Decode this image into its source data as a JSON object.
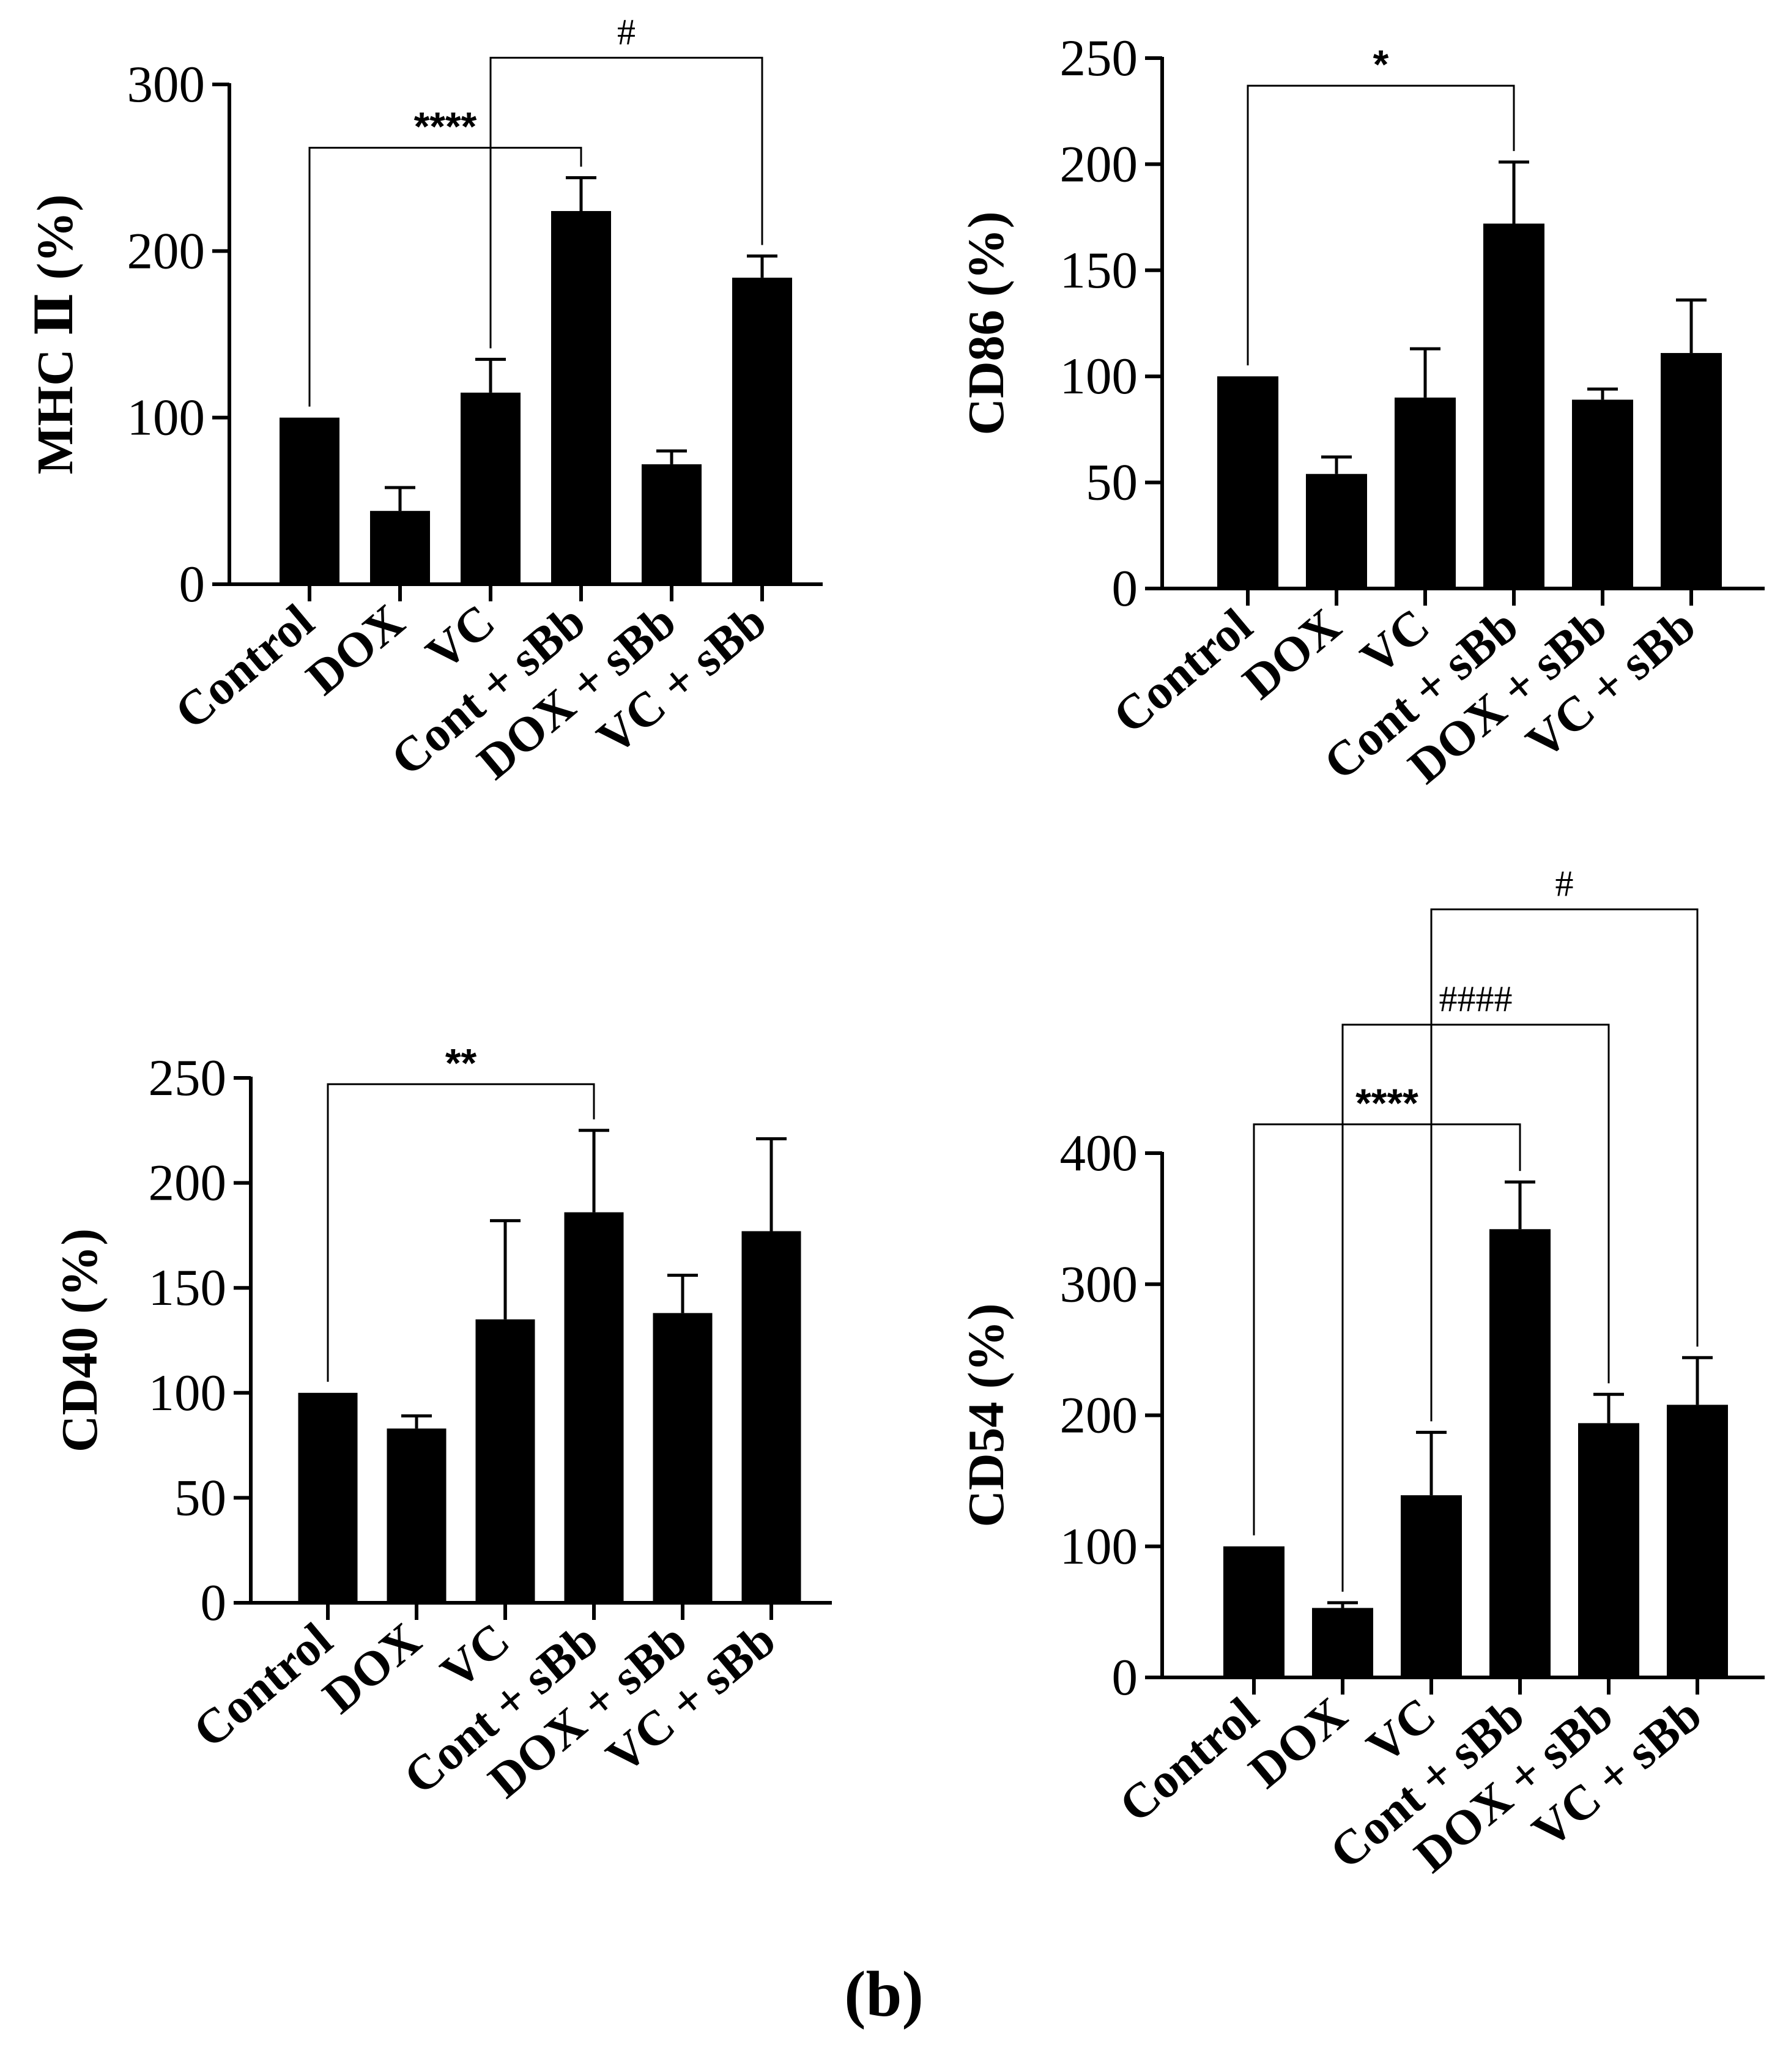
{
  "panel_label": "(b)",
  "chart_data": [
    {
      "type": "bar",
      "ylabel": "MHC Ⅱ (%)",
      "categories": [
        "Control",
        "DOX",
        "VC",
        "Cont + sBb",
        "DOX + sBb",
        "VC + sBb"
      ],
      "values": [
        100,
        44,
        115,
        224,
        72,
        184
      ],
      "errors": [
        0,
        14,
        20,
        20,
        8,
        13
      ],
      "ylim": [
        0,
        300
      ],
      "yticks": [
        0,
        100,
        200,
        300
      ],
      "significance": [
        {
          "from": 0,
          "to": 3,
          "label": "****",
          "y": 262
        },
        {
          "from": 2,
          "to": 5,
          "label": "#",
          "y": 316
        }
      ]
    },
    {
      "type": "bar",
      "ylabel": "CD86 (%)",
      "categories": [
        "Control",
        "DOX",
        "VC",
        "Cont + sBb",
        "DOX + sBb",
        "VC + sBb"
      ],
      "values": [
        100,
        54,
        90,
        172,
        89,
        111
      ],
      "errors": [
        0,
        8,
        23,
        29,
        5,
        25
      ],
      "ylim": [
        0,
        250
      ],
      "yticks": [
        0,
        50,
        100,
        150,
        200,
        250
      ],
      "significance": [
        {
          "from": 0,
          "to": 3,
          "label": "*",
          "y": 237
        }
      ]
    },
    {
      "type": "bar",
      "ylabel": "CD40 (%)",
      "categories": [
        "Control",
        "DOX",
        "VC",
        "Cont + sBb",
        "DOX + sBb",
        "VC + sBb"
      ],
      "values": [
        100,
        83,
        135,
        186,
        138,
        177
      ],
      "errors": [
        0,
        6,
        47,
        39,
        18,
        44
      ],
      "ylim": [
        0,
        250
      ],
      "yticks": [
        0,
        50,
        100,
        150,
        200,
        250
      ],
      "significance": [
        {
          "from": 0,
          "to": 3,
          "label": "**",
          "y": 247
        }
      ]
    },
    {
      "type": "bar",
      "ylabel": "CD54 (%)",
      "categories": [
        "Control",
        "DOX",
        "VC",
        "Cont + sBb",
        "DOX + sBb",
        "VC + sBb"
      ],
      "values": [
        100,
        53,
        139,
        342,
        194,
        208
      ],
      "errors": [
        0,
        4,
        48,
        36,
        22,
        36
      ],
      "ylim": [
        0,
        400
      ],
      "yticks": [
        0,
        100,
        200,
        300,
        400
      ],
      "significance": [
        {
          "from": 0,
          "to": 3,
          "label": "****",
          "y": 422
        },
        {
          "from": 1,
          "to": 4,
          "label": "####",
          "y": 498
        },
        {
          "from": 2,
          "to": 5,
          "label": "#",
          "y": 586
        }
      ]
    }
  ]
}
